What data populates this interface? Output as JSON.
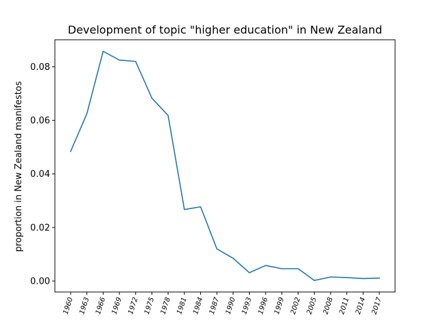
{
  "chart_data": {
    "type": "line",
    "title": "Development of topic \"higher education\" in New Zealand",
    "xlabel": "",
    "ylabel": "proportion in New Zealand manifestos",
    "x": [
      "1960",
      "1963",
      "1966",
      "1969",
      "1972",
      "1975",
      "1978",
      "1981",
      "1984",
      "1987",
      "1990",
      "1993",
      "1996",
      "1999",
      "2002",
      "2005",
      "2008",
      "2011",
      "2014",
      "2017"
    ],
    "series": [
      {
        "values": [
          0.0484,
          0.0625,
          0.0858,
          0.0825,
          0.082,
          0.0683,
          0.0618,
          0.0267,
          0.0277,
          0.012,
          0.0085,
          0.0031,
          0.0058,
          0.0046,
          0.0046,
          0.0002,
          0.0015,
          0.0013,
          0.0009,
          0.0011
        ]
      }
    ],
    "ylim": [
      -0.0041,
      0.0901
    ],
    "yticks": [
      "0.00",
      "0.02",
      "0.04",
      "0.06",
      "0.08"
    ],
    "ytick_values": [
      0.0,
      0.02,
      0.04,
      0.06,
      0.08
    ],
    "line_color": "#1f77b4",
    "grid": false,
    "legend": "none"
  }
}
